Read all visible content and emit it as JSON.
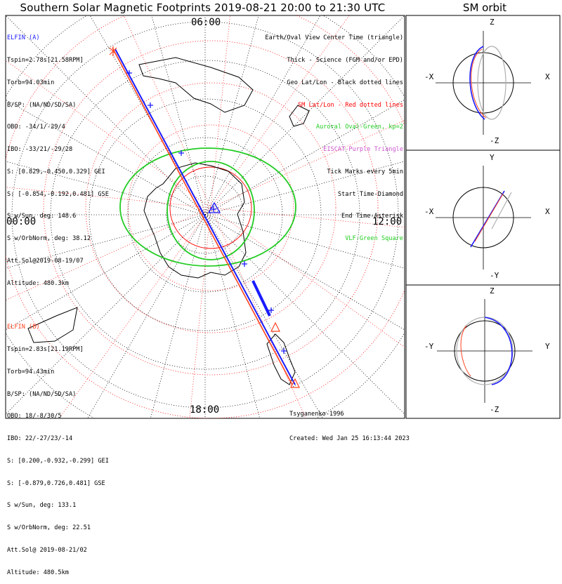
{
  "title": "Southern Solar Magnetic Footprints 2019-08-21 20:00 to 21:30 UTC",
  "sm_title": "SM orbit",
  "colors": {
    "probe_a": "#1a1aff",
    "probe_b": "#ff4422",
    "green": "#22cc22",
    "purple": "#cc55cc",
    "red": "#ff0000"
  },
  "probe_a": {
    "name": "ELFIN (A)",
    "lines": [
      "Tspin=2.78s[21.58RPM]",
      "Torb=94.03min",
      "B/SP: (NA/ND/SD/SA)",
      "OBO: -34/1/-29/4",
      "IBO: -33/21/-29/28",
      "S: [0.829,-0.450,0.329] GEI",
      "S: [-0.854,-0.192,0.481] GSE",
      "S w/Sun, deg: 148.6",
      "S w/OrbNorm, deg: 38.12",
      "Att.Sol@2019-08-19/07",
      "Altitude: 480.3km"
    ]
  },
  "probe_b": {
    "name": "ELFIN (B)",
    "lines": [
      "Tspin=2.83s[21.19RPM]",
      "Torb=94.43min",
      "B/SP: (NA/ND/SD/SA)",
      "OBO: 18/-8/30/5",
      "IBO: 22/-27/23/-14",
      "S: [0.200,-0.932,-0.299] GEI",
      "S: [-0.879,0.726,0.481] GSE",
      "S w/Sun, deg: 133.1",
      "S w/OrbNorm, deg: 22.51",
      "Att.Sol@ 2019-08-21/02",
      "Altitude: 480.5km"
    ]
  },
  "legend": [
    {
      "text": "Earth/Oval View Center Time (triangle)",
      "color": "#000000"
    },
    {
      "text": "Thick - Science (FGM and/or EPD)",
      "color": "#000000"
    },
    {
      "text": "Geo Lat/Lon - Black dotted lines",
      "color": "#000000"
    },
    {
      "text": "SM Lat/Lon - Red dotted lines",
      "color": "#ff0000"
    },
    {
      "text": "Auroral Oval-Green, kp=2",
      "color": "#22cc22"
    },
    {
      "text": "EISCAT-Purple Triangle",
      "color": "#cc55cc"
    },
    {
      "text": "Tick Marks every 5min",
      "color": "#000000"
    },
    {
      "text": "Start Time-Diamond",
      "color": "#000000"
    },
    {
      "text": "End Time-Asterisk",
      "color": "#000000"
    },
    {
      "text": "VLF-Green Square",
      "color": "#22cc22"
    }
  ],
  "credits": {
    "author": "Tsyganenko-1996",
    "created": "Created: Wed Jan 25 16:13:44 2023"
  },
  "polar_labels": {
    "top": "06:00",
    "left": "00:00",
    "right": "12:00",
    "bottom": "18:00"
  },
  "sm_panels": [
    {
      "vertical": "Z",
      "bottom": "-Z",
      "left": "-X",
      "right": "X"
    },
    {
      "vertical": "Y",
      "bottom": "-Y",
      "left": "-X",
      "right": "X"
    },
    {
      "vertical": "Z",
      "bottom": "-Z",
      "left": "-Y",
      "right": "Y"
    }
  ],
  "chart_data": {
    "type": "polar_map",
    "hemisphere": "south",
    "local_time_labels": {
      "top": "06:00",
      "left": "00:00",
      "right": "12:00",
      "bottom": "18:00"
    },
    "auroral_oval_kp": 2,
    "tick_interval_min": 5,
    "time_range": [
      "2019-08-21 20:00",
      "2019-08-21 21:30"
    ],
    "tracks": [
      {
        "name": "ELFIN (A)",
        "color": "#1a1aff"
      },
      {
        "name": "ELFIN (B)",
        "color": "#ff4422"
      }
    ]
  }
}
